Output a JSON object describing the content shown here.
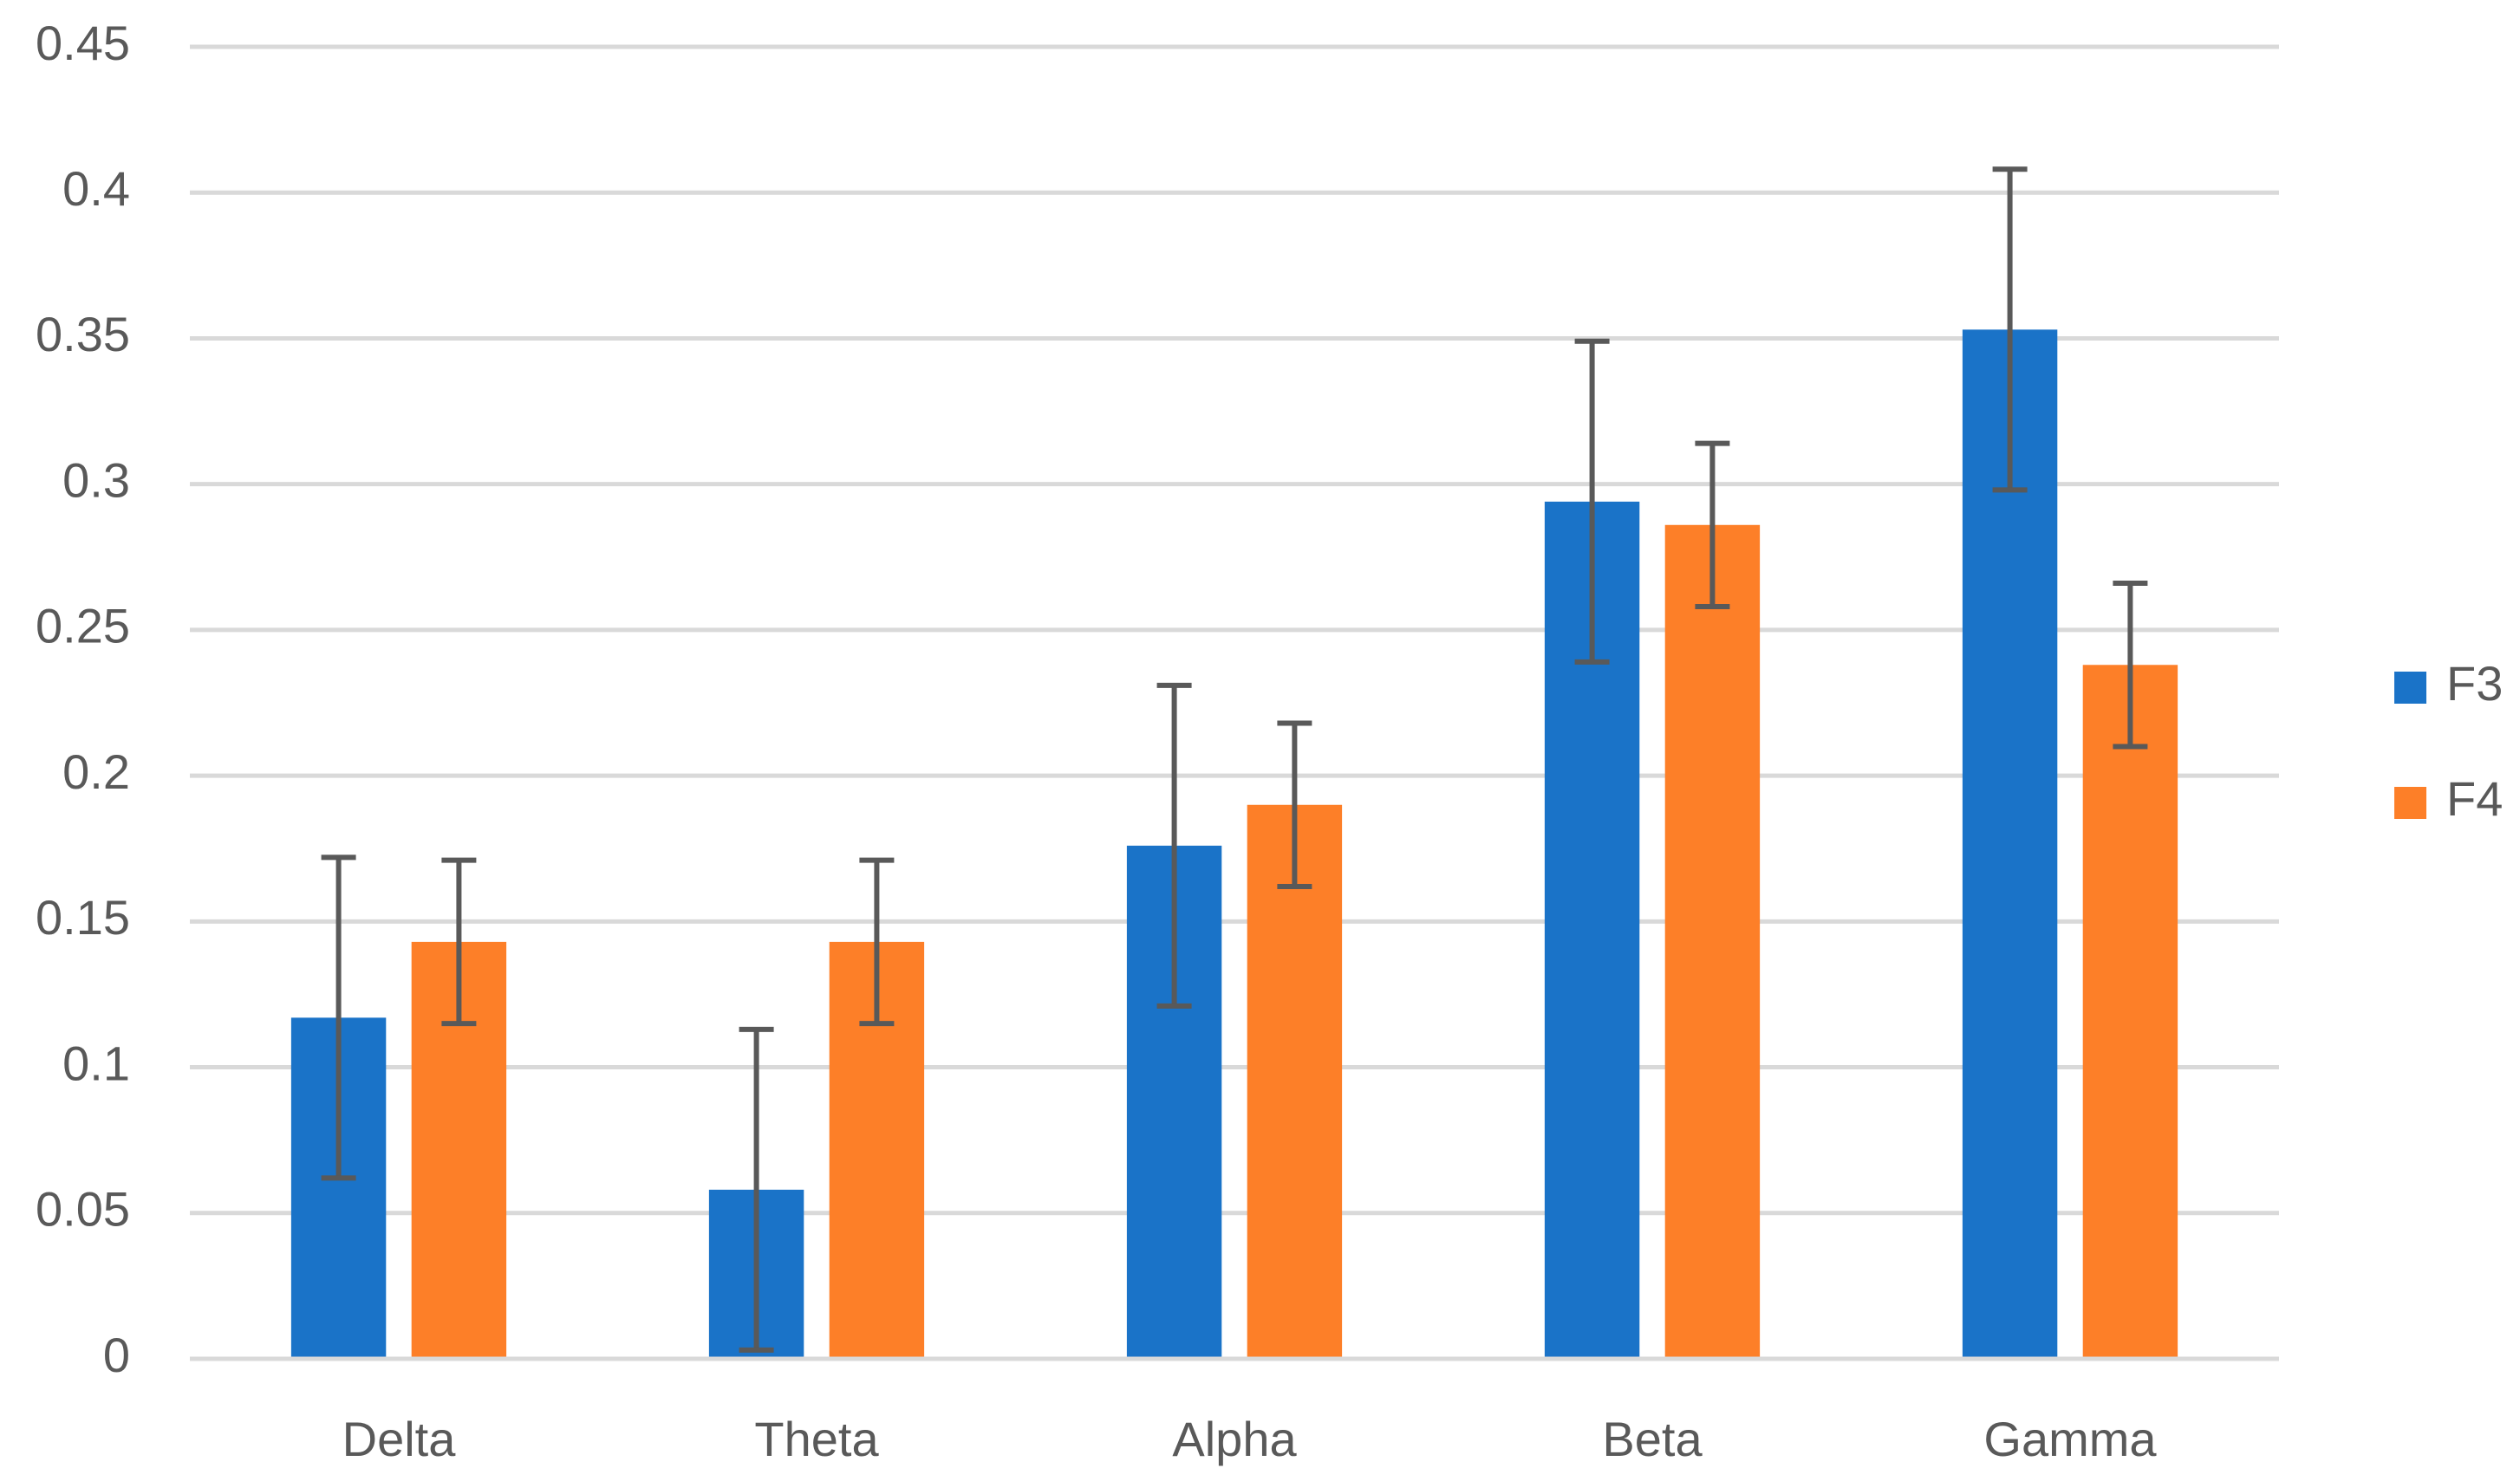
{
  "chart_data": {
    "type": "bar",
    "categories": [
      "Delta",
      "Theta",
      "Alpha",
      "Beta",
      "Gamma"
    ],
    "series": [
      {
        "name": "F3",
        "color": "#1a73c8",
        "values": [
          0.117,
          0.058,
          0.176,
          0.294,
          0.353
        ],
        "errors": [
          0.055,
          0.055,
          0.055,
          0.055,
          0.055
        ]
      },
      {
        "name": "F4",
        "color": "#fd7f28",
        "values": [
          0.143,
          0.143,
          0.19,
          0.286,
          0.238
        ],
        "errors": [
          0.028,
          0.028,
          0.028,
          0.028,
          0.028
        ]
      }
    ],
    "ylim": [
      0,
      0.45
    ],
    "yticks": [
      0,
      0.05,
      0.1,
      0.15,
      0.2,
      0.25,
      0.3,
      0.35,
      0.4,
      0.45
    ],
    "grid": true,
    "legend": "right",
    "error_color": "#595959"
  }
}
